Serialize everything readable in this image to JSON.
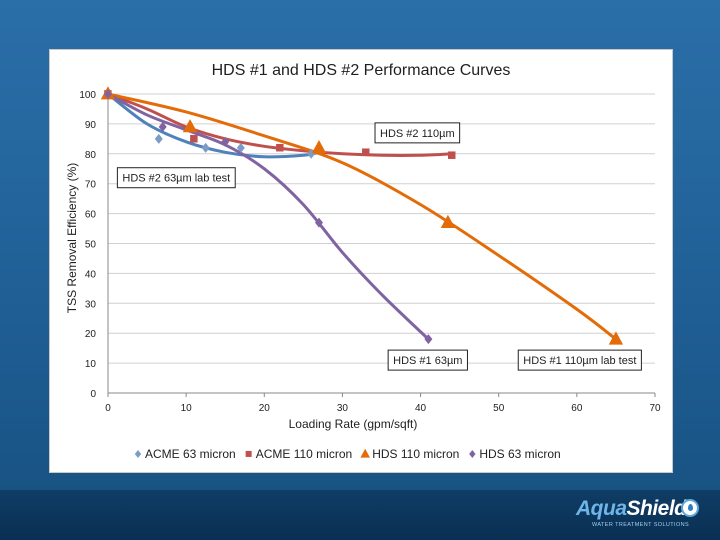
{
  "chart_data": {
    "type": "scatter",
    "title": "HDS #1 and HDS #2 Performance Curves",
    "xlabel": "Loading Rate (gpm/sqft)",
    "ylabel": "TSS Removal Efficiency (%)",
    "xlim": [
      0,
      70
    ],
    "ylim": [
      0,
      100
    ],
    "xticks": [
      0,
      10,
      20,
      30,
      40,
      50,
      60,
      70
    ],
    "yticks": [
      0,
      10,
      20,
      30,
      40,
      50,
      60,
      70,
      80,
      90,
      100
    ],
    "grid": "horizontal",
    "legend_position": "bottom",
    "series": [
      {
        "name": "ACME 63 micron",
        "color": "#7b9cc7",
        "marker": "diamond",
        "points": [
          [
            0,
            100
          ],
          [
            6.5,
            85
          ],
          [
            12.5,
            82
          ],
          [
            17,
            82
          ],
          [
            26,
            80
          ]
        ]
      },
      {
        "name": "ACME 110 micron",
        "color": "#c0504d",
        "marker": "square",
        "points": [
          [
            0,
            100
          ],
          [
            11,
            85
          ],
          [
            22,
            82
          ],
          [
            33,
            80.5
          ],
          [
            44,
            79.5
          ]
        ]
      },
      {
        "name": "HDS 110 micron",
        "color": "#e36c09",
        "marker": "triangle",
        "points": [
          [
            0,
            100
          ],
          [
            10.5,
            89
          ],
          [
            27,
            82
          ],
          [
            43.5,
            57
          ],
          [
            65,
            18
          ]
        ]
      },
      {
        "name": "HDS 63 micron",
        "color": "#8064a2",
        "marker": "diamond",
        "points": [
          [
            0,
            100
          ],
          [
            7,
            89
          ],
          [
            15,
            84
          ],
          [
            27,
            57
          ],
          [
            41,
            18
          ]
        ]
      }
    ],
    "curves": [
      {
        "name": "HDS #2 63µm lab test",
        "color": "#4f81bd",
        "points": [
          [
            0,
            100
          ],
          [
            5,
            90
          ],
          [
            10,
            84
          ],
          [
            15,
            80.5
          ],
          [
            20,
            79
          ],
          [
            25,
            79.5
          ],
          [
            27,
            80.5
          ]
        ]
      },
      {
        "name": "HDS #2 110µm",
        "color": "#c0504d",
        "points": [
          [
            0,
            100
          ],
          [
            5,
            95
          ],
          [
            10,
            89
          ],
          [
            15,
            85
          ],
          [
            20,
            82.5
          ],
          [
            25,
            81
          ],
          [
            30,
            80
          ],
          [
            35,
            79.5
          ],
          [
            40,
            79.5
          ],
          [
            44,
            80
          ]
        ]
      },
      {
        "name": "HDS #1 110µm lab test",
        "color": "#e36c09",
        "points": [
          [
            0,
            100
          ],
          [
            10,
            94
          ],
          [
            20,
            86
          ],
          [
            30,
            77
          ],
          [
            40,
            63
          ],
          [
            50,
            46
          ],
          [
            60,
            28
          ],
          [
            65,
            18
          ]
        ]
      },
      {
        "name": "HDS #1 63µm",
        "color": "#8064a2",
        "points": [
          [
            0,
            100
          ],
          [
            5,
            93
          ],
          [
            10,
            88
          ],
          [
            15,
            83
          ],
          [
            20,
            75
          ],
          [
            25,
            63
          ],
          [
            30,
            47
          ],
          [
            35,
            33
          ],
          [
            41,
            18
          ]
        ]
      }
    ],
    "annotations": [
      {
        "text": "HDS #2 110µm",
        "x": 45,
        "y": 87,
        "anchor": "end"
      },
      {
        "text": "HDS #2 63µm lab test",
        "x": 1.2,
        "y": 72,
        "anchor": "start"
      },
      {
        "text": "HDS #1 63µm",
        "x": 46,
        "y": 11,
        "anchor": "end"
      },
      {
        "text": "HDS #1 110µm lab test",
        "x": 52.5,
        "y": 11,
        "anchor": "start"
      }
    ]
  },
  "logo": {
    "brand_part1": "Aqua",
    "brand_part2": "Shield",
    "tagline": "WATER TREATMENT SOLUTIONS"
  }
}
